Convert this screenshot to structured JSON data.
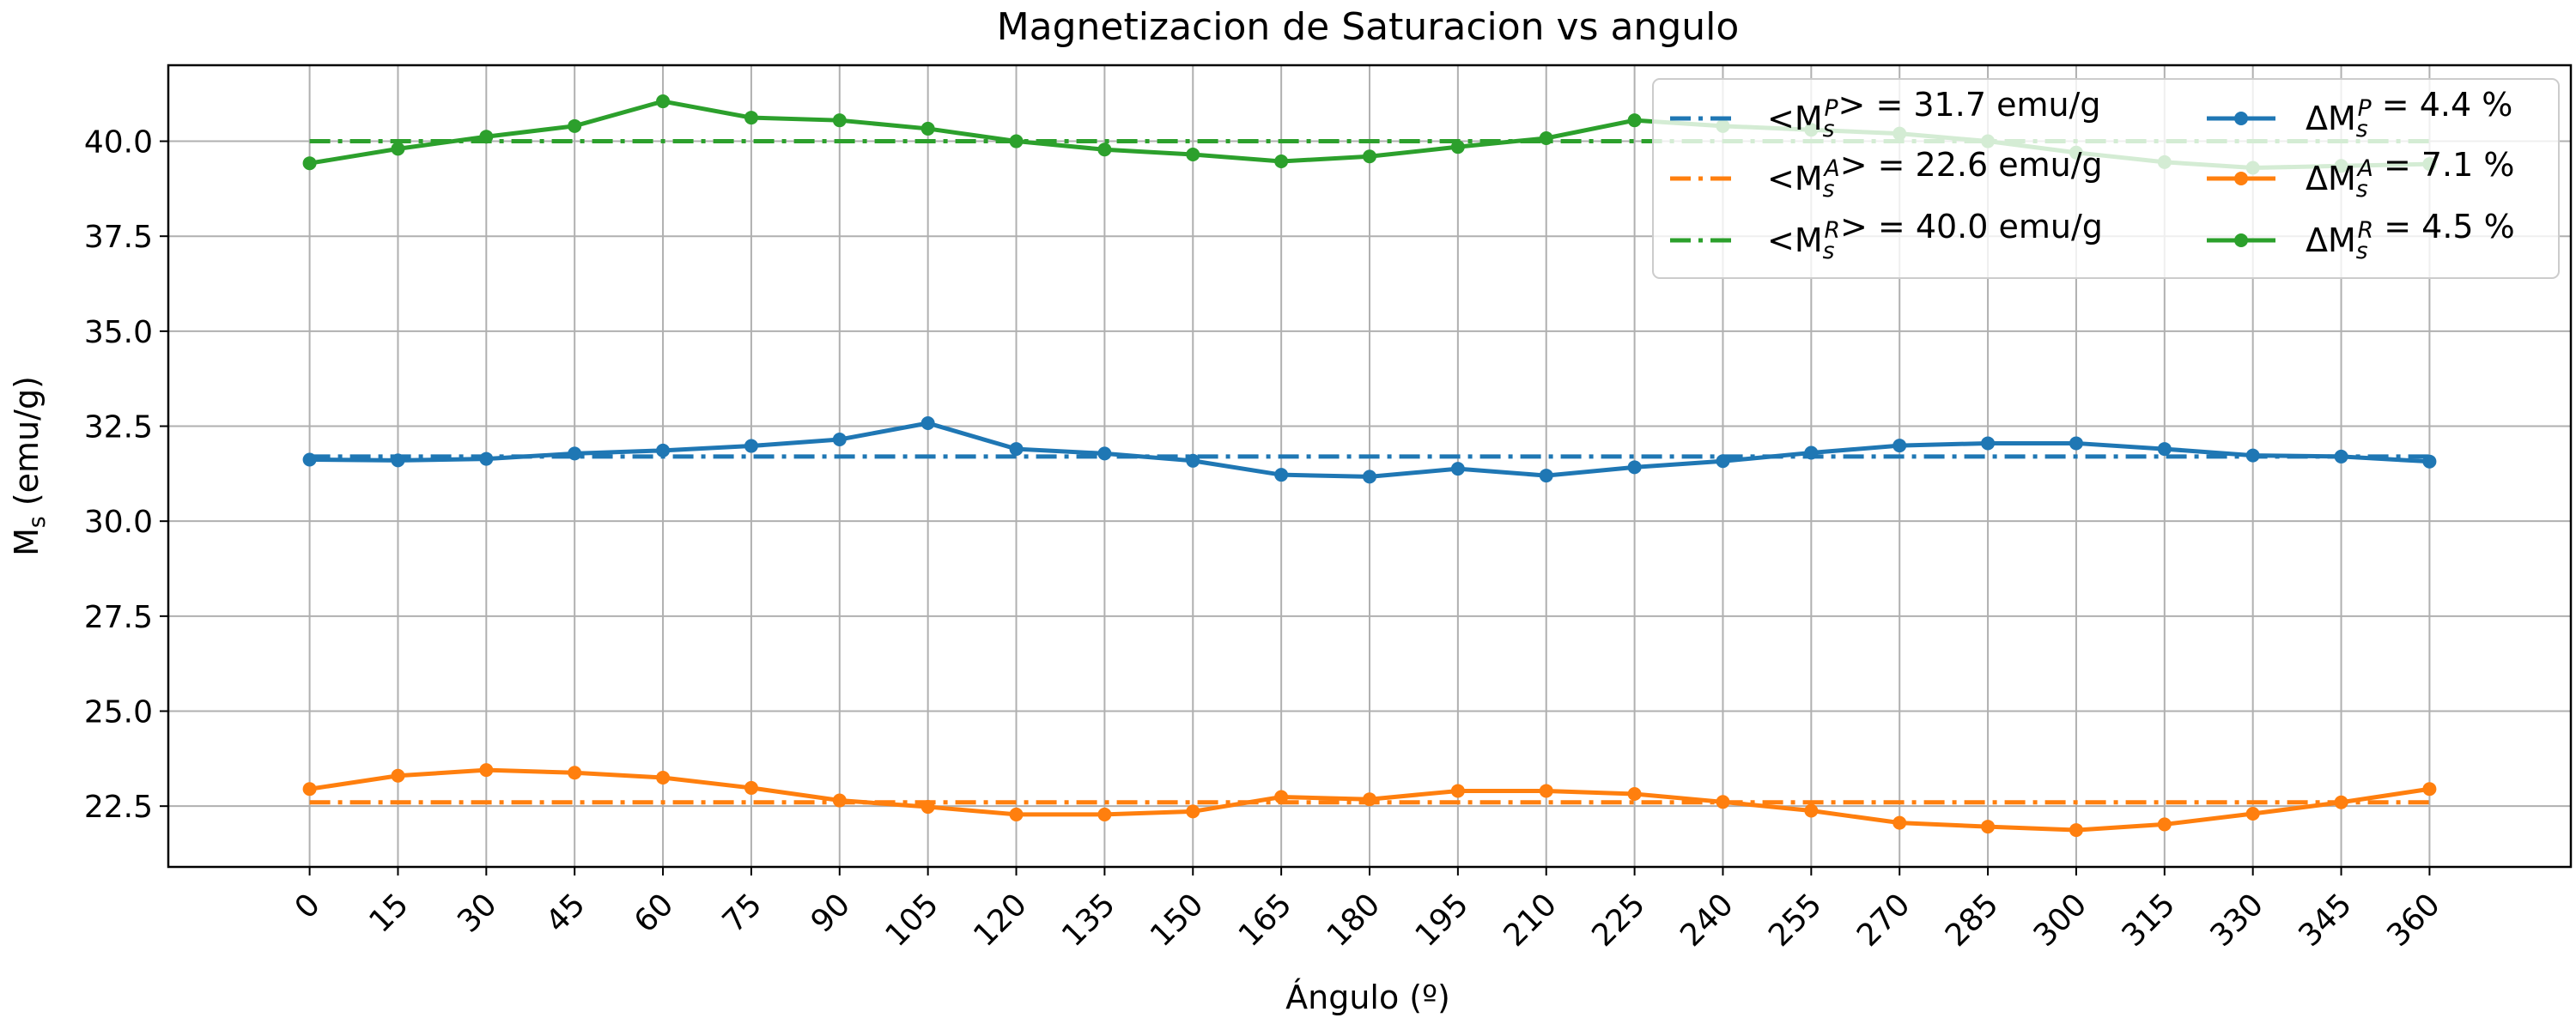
{
  "chart_data": {
    "type": "line",
    "title": "Magnetizacion de Saturacion vs angulo",
    "xlabel": "Ángulo (º)",
    "ylabel": "M_s (emu/g)",
    "x": [
      0,
      15,
      30,
      45,
      60,
      75,
      90,
      105,
      120,
      135,
      150,
      165,
      180,
      195,
      210,
      225,
      240,
      255,
      270,
      285,
      300,
      315,
      330,
      345,
      360
    ],
    "xticks": [
      "0",
      "15",
      "30",
      "45",
      "60",
      "75",
      "90",
      "105",
      "120",
      "135",
      "150",
      "165",
      "180",
      "195",
      "210",
      "225",
      "240",
      "255",
      "270",
      "285",
      "300",
      "315",
      "330",
      "345",
      "360"
    ],
    "yticks": [
      "22.5",
      "25.0",
      "27.5",
      "30.0",
      "32.5",
      "35.0",
      "37.5",
      "40.0"
    ],
    "ylim": [
      20.9,
      42.0
    ],
    "xlim": [
      -24,
      384
    ],
    "grid": true,
    "legend_position": "top-right",
    "series": [
      {
        "key": "P",
        "color": "#1f77b4",
        "legend_text": "ΔM_s^P = 4.4 %",
        "values": [
          31.62,
          31.6,
          31.64,
          31.78,
          31.86,
          31.98,
          32.15,
          32.58,
          31.9,
          31.78,
          31.59,
          31.22,
          31.17,
          31.38,
          31.2,
          31.42,
          31.58,
          31.8,
          31.99,
          32.05,
          32.05,
          31.9,
          31.73,
          31.7,
          31.57
        ]
      },
      {
        "key": "A",
        "color": "#ff7f0e",
        "legend_text": "ΔM_s^A = 7.1 %",
        "values": [
          22.95,
          23.3,
          23.45,
          23.38,
          23.25,
          22.98,
          22.65,
          22.48,
          22.28,
          22.28,
          22.36,
          22.74,
          22.68,
          22.9,
          22.9,
          22.82,
          22.61,
          22.38,
          22.06,
          21.96,
          21.87,
          22.02,
          22.3,
          22.6,
          22.95
        ]
      },
      {
        "key": "R",
        "color": "#2ca02c",
        "legend_text": "ΔM_s^R = 4.5 %",
        "values": [
          39.42,
          39.8,
          40.12,
          40.4,
          41.05,
          40.62,
          40.55,
          40.33,
          40.0,
          39.78,
          39.65,
          39.47,
          39.6,
          39.85,
          40.08,
          40.55,
          40.4,
          40.3,
          40.2,
          40.0,
          39.7,
          39.45,
          39.3,
          39.35,
          39.4
        ]
      }
    ],
    "means": [
      {
        "key": "P",
        "color": "#1f77b4",
        "value": 31.7,
        "legend_text": "<M_s^P> = 31.7 emu/g"
      },
      {
        "key": "A",
        "color": "#ff7f0e",
        "value": 22.6,
        "legend_text": "<M_s^A> = 22.6 emu/g"
      },
      {
        "key": "R",
        "color": "#2ca02c",
        "value": 40.0,
        "legend_text": "<M_s^R> = 40.0 emu/g"
      }
    ]
  }
}
